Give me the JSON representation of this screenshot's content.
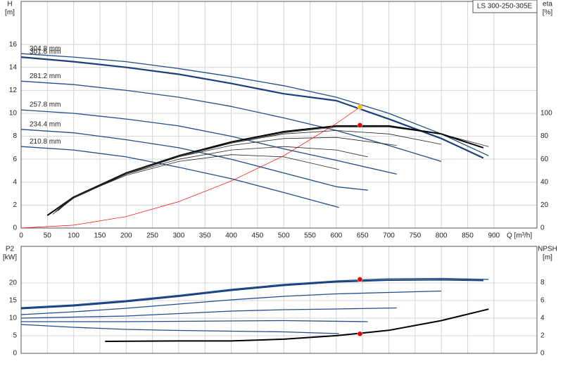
{
  "chart_data": [
    {
      "type": "line",
      "label": "LS 300-250-305E",
      "ylabel": "H",
      "ylabel_unit": "[m]",
      "y2label": "eta",
      "y2label_unit": "[%]",
      "xlabel": "Q [m³/h]",
      "xlim": [
        0,
        982
      ],
      "xticks": [
        0,
        50,
        100,
        150,
        200,
        250,
        300,
        350,
        400,
        450,
        500,
        550,
        600,
        650,
        700,
        750,
        800,
        850,
        900
      ],
      "ylim": [
        0,
        19.75
      ],
      "yticks": [
        0,
        2,
        4,
        6,
        8,
        10,
        12,
        14,
        16
      ],
      "y2lim": [
        0,
        197.5
      ],
      "y2ticks": [
        0,
        20,
        40,
        60,
        80,
        100
      ],
      "grid": true,
      "series": [
        {
          "name": "304.8 mm",
          "color": "#1f4e8c",
          "width": 1.3,
          "x": [
            0,
            100,
            200,
            300,
            400,
            500,
            600,
            700,
            800,
            890
          ],
          "values": [
            15.2,
            14.9,
            14.5,
            13.9,
            13.2,
            12.4,
            11.4,
            10.0,
            8.2,
            6.3
          ]
        },
        {
          "name": "301.6 mm",
          "color": "#1a3f7a",
          "width": 2.2,
          "x": [
            0,
            100,
            200,
            300,
            400,
            500,
            600,
            700,
            800,
            880
          ],
          "values": [
            14.9,
            14.5,
            14.0,
            13.4,
            12.6,
            11.7,
            11.1,
            9.5,
            7.8,
            6.1
          ]
        },
        {
          "name": "281.2 mm",
          "color": "#1f4e8c",
          "width": 1.3,
          "x": [
            0,
            100,
            200,
            300,
            400,
            500,
            600,
            700,
            800
          ],
          "values": [
            12.8,
            12.5,
            12.0,
            11.4,
            10.6,
            9.6,
            8.5,
            7.2,
            5.8
          ]
        },
        {
          "name": "257.8 mm",
          "color": "#1f4e8c",
          "width": 1.3,
          "x": [
            0,
            100,
            200,
            300,
            400,
            500,
            600,
            715
          ],
          "values": [
            10.3,
            10.0,
            9.5,
            8.9,
            8.0,
            6.9,
            5.9,
            4.7
          ]
        },
        {
          "name": "234.4 mm",
          "color": "#1f4e8c",
          "width": 1.3,
          "x": [
            0,
            100,
            200,
            300,
            400,
            500,
            600,
            660
          ],
          "values": [
            8.6,
            8.3,
            7.7,
            7.0,
            6.0,
            4.8,
            3.6,
            3.3
          ]
        },
        {
          "name": "210.8 mm",
          "color": "#1f4e8c",
          "width": 1.3,
          "x": [
            0,
            100,
            200,
            300,
            400,
            500,
            605
          ],
          "values": [
            7.1,
            6.8,
            6.2,
            5.3,
            4.3,
            3.1,
            1.8
          ]
        },
        {
          "color": "#222222",
          "width": 0.8,
          "axis": "y2",
          "x": [
            60,
            100,
            200,
            300,
            400,
            500,
            600,
            700,
            800,
            890
          ],
          "values": [
            12,
            26,
            47,
            62,
            74,
            83,
            88,
            88,
            82,
            71
          ]
        },
        {
          "color": "#000000",
          "width": 2,
          "axis": "y2",
          "x": [
            50,
            100,
            200,
            300,
            400,
            500,
            600,
            700,
            800,
            880
          ],
          "values": [
            11,
            27,
            48,
            63,
            75,
            84,
            89,
            89,
            82,
            70
          ]
        },
        {
          "color": "#222222",
          "width": 0.8,
          "axis": "y2",
          "x": [
            65,
            100,
            200,
            300,
            400,
            500,
            600,
            700,
            800
          ],
          "values": [
            14,
            27,
            48,
            63,
            74,
            82,
            85,
            82,
            73
          ]
        },
        {
          "color": "#222222",
          "width": 0.8,
          "axis": "y2",
          "x": [
            70,
            100,
            200,
            300,
            400,
            500,
            600,
            715
          ],
          "values": [
            15,
            27,
            48,
            62,
            72,
            78,
            79,
            72
          ]
        },
        {
          "color": "#222222",
          "width": 0.8,
          "axis": "y2",
          "x": [
            70,
            100,
            200,
            300,
            400,
            500,
            600,
            660
          ],
          "values": [
            16,
            27,
            47,
            60,
            68,
            71,
            68,
            62
          ]
        },
        {
          "color": "#222222",
          "width": 0.8,
          "axis": "y2",
          "x": [
            70,
            100,
            200,
            300,
            400,
            500,
            605
          ],
          "values": [
            17,
            27,
            46,
            58,
            64,
            62,
            51
          ]
        },
        {
          "color": "#ff0000",
          "width": 0.7,
          "x": [
            0,
            100,
            200,
            300,
            400,
            500,
            600,
            645
          ],
          "values": [
            0,
            0.25,
            1.0,
            2.3,
            4.1,
            6.3,
            9.1,
            10.55
          ]
        }
      ],
      "points": [
        {
          "x": 645,
          "value": 10.55,
          "color": "#f5c400"
        },
        {
          "x": 645,
          "value": 89.6,
          "color": "#e00000",
          "axis": "y2"
        }
      ]
    },
    {
      "type": "line",
      "ylabel": "P2",
      "ylabel_unit": "[kW]",
      "y2label": "NPSH",
      "y2label_unit": "[m]",
      "xlim": [
        0,
        982
      ],
      "xticks": [
        0,
        50,
        100,
        150,
        200,
        250,
        300,
        350,
        400,
        450,
        500,
        550,
        600,
        650,
        700,
        750,
        800,
        850,
        900
      ],
      "xtick_labels": false,
      "ylim": [
        0,
        30.4
      ],
      "yticks": [
        0,
        5,
        10,
        15,
        20
      ],
      "y2lim": [
        0,
        12.1
      ],
      "y2ticks": [
        0,
        2,
        4,
        6,
        8
      ],
      "grid": true,
      "series": [
        {
          "color": "#1f4e8c",
          "width": 1.3,
          "x": [
            0,
            100,
            200,
            300,
            400,
            500,
            600,
            700,
            800,
            890
          ],
          "values": [
            13.0,
            13.8,
            15.0,
            16.5,
            18.2,
            19.6,
            20.6,
            21.2,
            21.3,
            21.0
          ]
        },
        {
          "color": "#1a3f7a",
          "width": 2,
          "x": [
            0,
            100,
            200,
            300,
            400,
            500,
            600,
            700,
            800,
            880
          ],
          "values": [
            12.7,
            13.5,
            14.7,
            16.2,
            17.9,
            19.3,
            20.3,
            20.8,
            20.9,
            20.7
          ]
        },
        {
          "color": "#1f4e8c",
          "width": 1.3,
          "x": [
            0,
            100,
            200,
            300,
            400,
            500,
            600,
            700,
            800
          ],
          "values": [
            11.0,
            11.8,
            12.8,
            14.0,
            15.2,
            16.2,
            16.9,
            17.3,
            17.7
          ]
        },
        {
          "color": "#1f4e8c",
          "width": 1.3,
          "x": [
            0,
            200,
            300,
            400,
            500,
            600,
            715
          ],
          "values": [
            10.0,
            10.6,
            11.3,
            12.0,
            12.4,
            12.6,
            12.9
          ]
        },
        {
          "color": "#1f4e8c",
          "width": 1.3,
          "x": [
            0,
            200,
            400,
            500,
            660
          ],
          "values": [
            9.0,
            9.0,
            9.2,
            9.3,
            9.0
          ]
        },
        {
          "color": "#1f4e8c",
          "width": 1.3,
          "x": [
            0,
            100,
            200,
            300,
            400,
            500,
            605
          ],
          "values": [
            8.2,
            7.4,
            6.8,
            6.5,
            6.3,
            6.1,
            5.6
          ]
        },
        {
          "color": "#000000",
          "width": 2,
          "axis": "y2",
          "x": [
            160,
            300,
            400,
            500,
            600,
            700,
            800,
            890
          ],
          "values": [
            1.35,
            1.4,
            1.4,
            1.6,
            2.0,
            2.6,
            3.7,
            5.0
          ]
        }
      ],
      "points": [
        {
          "x": 645,
          "value": 21.0,
          "color": "#e00000"
        },
        {
          "x": 645,
          "value": 2.2,
          "color": "#e00000",
          "axis": "y2"
        }
      ]
    }
  ]
}
